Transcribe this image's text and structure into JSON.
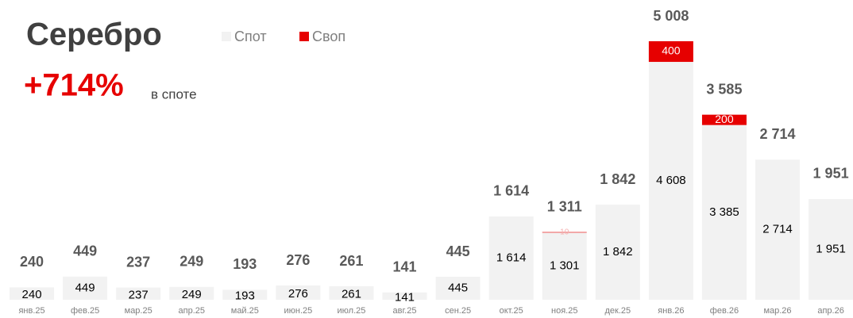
{
  "chart_data": {
    "type": "stacked_bar",
    "title": "Серебро",
    "annotations": [
      "+714%",
      "в споте"
    ],
    "categories": [
      "янв.25",
      "фев.25",
      "мар.25",
      "апр.25",
      "май.25",
      "июн.25",
      "июл.25",
      "авг.25",
      "сен.25",
      "окт.25",
      "ноя.25",
      "дек.25",
      "янв.26",
      "фев.26",
      "мар.26",
      "апр.26"
    ],
    "series": [
      {
        "name": "Спот",
        "color": "#f2f2f2",
        "values": [
          240,
          449,
          237,
          249,
          193,
          276,
          261,
          141,
          445,
          1614,
          1301,
          1842,
          4608,
          3385,
          2714,
          1951
        ],
        "value_labels": [
          "240",
          "449",
          "237",
          "249",
          "193",
          "276",
          "261",
          "141",
          "445",
          "1 614",
          "1 301",
          "1 842",
          "4 608",
          "3 385",
          "2 714",
          "1 951"
        ]
      },
      {
        "name": "Своп",
        "color": "#e60000",
        "values": [
          0,
          0,
          0,
          0,
          0,
          0,
          0,
          0,
          0,
          0,
          10,
          0,
          400,
          200,
          0,
          0
        ],
        "value_labels": [
          null,
          null,
          null,
          null,
          null,
          null,
          null,
          null,
          null,
          null,
          "10",
          null,
          "400",
          "200",
          null,
          null
        ]
      }
    ],
    "totals": [
      240,
      449,
      237,
      249,
      193,
      276,
      261,
      141,
      445,
      1614,
      1311,
      1842,
      5008,
      3585,
      2714,
      1951
    ],
    "total_labels": [
      "240",
      "449",
      "237",
      "249",
      "193",
      "276",
      "261",
      "141",
      "445",
      "1 614",
      "1 311",
      "1 842",
      "5 008",
      "3 585",
      "2 714",
      "1 951"
    ]
  }
}
